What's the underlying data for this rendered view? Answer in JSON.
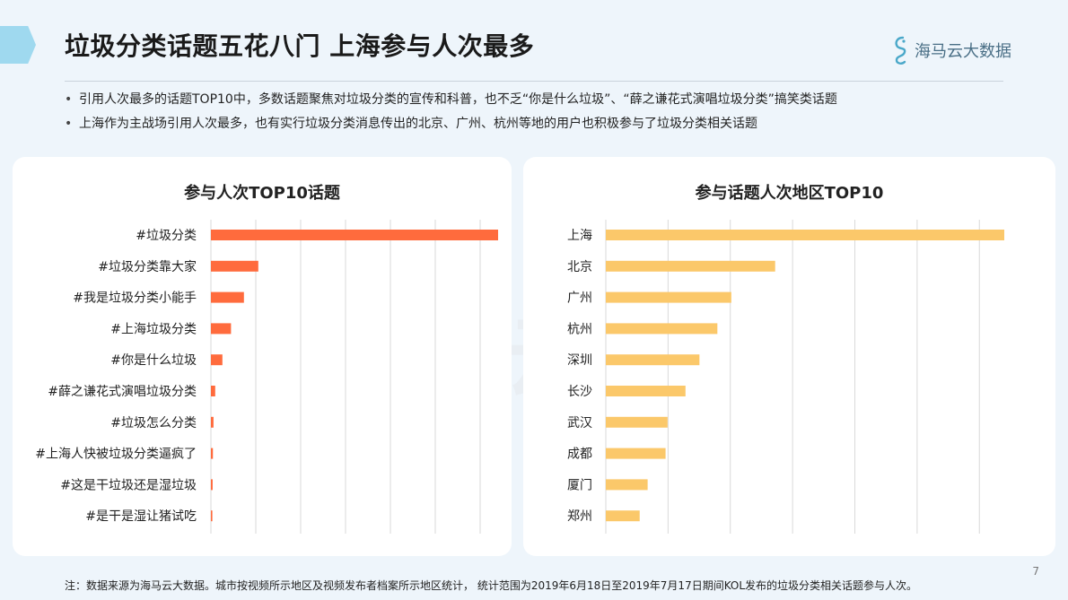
{
  "header": {
    "title": "垃圾分类话题五花八门 上海参与人次最多",
    "logo_text": "海马云大数据"
  },
  "bullets": [
    "引用人次最多的话题TOP10中，多数话题聚焦对垃圾分类的宣传和科普，也不乏“你是什么垃圾”、“薛之谦花式演唱垃圾分类”搞笑类话题",
    "上海作为主战场引用人次最多，也有实行垃圾分类消息传出的北京、广州、杭州等地的用户也积极参与了垃圾分类相关话题"
  ],
  "footnote": "注：数据来源为海马云大数据。城市按视频所示地区及视频发布者档案所示地区统计， 统计范围为2019年6月18日至2019年7月17日期间KOL发布的垃圾分类相关话题参与人次。",
  "page_number": "7",
  "watermark_text": "海马云大数据",
  "colors": {
    "left_bar": "#ff6b3d",
    "right_bar": "#fbc86a",
    "grid": "#d9d9d9",
    "accent_tab": "#9fd9ef"
  },
  "chart_data": [
    {
      "type": "bar",
      "orientation": "horizontal",
      "title": "参与人次TOP10话题",
      "categories": [
        "#垃圾分类",
        "#垃圾分类靠大家",
        "#我是垃圾分类小能手",
        "#上海垃圾分类",
        "#你是什么垃圾",
        "#薛之谦花式演唱垃圾分类",
        "#垃圾怎么分类",
        "#上海人快被垃圾分类逼疯了",
        "#这是干垃圾还是湿垃圾",
        "#是干是湿让猪试吃"
      ],
      "values": [
        100,
        16.5,
        11.5,
        7,
        4,
        1.5,
        0.9,
        0.7,
        0.6,
        0.5
      ],
      "xlim": [
        0,
        100
      ],
      "grid": true,
      "color": "#ff6b3d"
    },
    {
      "type": "bar",
      "orientation": "horizontal",
      "title": "参与话题人次地区TOP10",
      "categories": [
        "上海",
        "北京",
        "广州",
        "杭州",
        "深圳",
        "长沙",
        "武汉",
        "成都",
        "厦门",
        "郑州"
      ],
      "values": [
        100,
        42.5,
        31.5,
        28,
        23.5,
        20,
        15.5,
        15,
        10.5,
        8.5
      ],
      "xlim": [
        0,
        100
      ],
      "grid": true,
      "color": "#fbc86a"
    }
  ]
}
